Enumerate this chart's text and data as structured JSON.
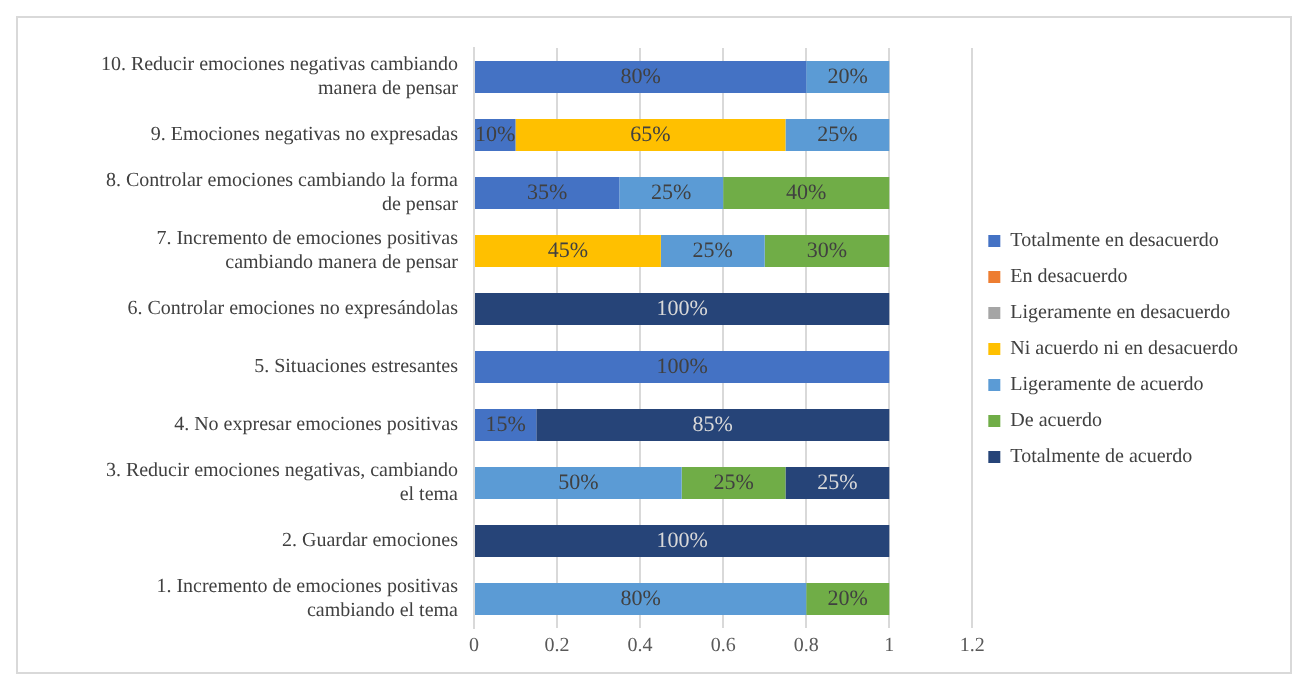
{
  "chart_data": {
    "type": "bar",
    "orientation": "horizontal",
    "stacked": true,
    "categories": [
      "10. Reducir emociones negativas cambiando manera de pensar",
      "9. Emociones negativas no expresadas",
      "8. Controlar emociones cambiando la forma de pensar",
      "7. Incremento de emociones positivas cambiando manera de pensar",
      "6. Controlar emociones no expresándolas",
      "5. Situaciones estresantes",
      "4. No expresar emociones positivas",
      "3. Reducir emociones negativas, cambiando el tema",
      "2. Guardar emociones",
      "1. Incremento de emociones positivas cambiando el tema"
    ],
    "series": [
      {
        "name": "Totalmente en desacuerdo",
        "color": "#4472c4",
        "values": [
          0.8,
          0.1,
          0.35,
          null,
          null,
          1,
          0.15,
          null,
          null,
          null
        ],
        "value_labels": [
          "80%",
          "10%",
          "35%",
          null,
          null,
          "100%",
          "15%",
          null,
          null,
          null
        ]
      },
      {
        "name": "En desacuerdo",
        "color": "#ed7d31",
        "values": [
          null,
          null,
          null,
          null,
          null,
          null,
          null,
          null,
          null,
          null
        ]
      },
      {
        "name": "Ligeramente en desacuerdo",
        "color": "#a5a5a5",
        "values": [
          null,
          null,
          null,
          null,
          null,
          null,
          null,
          null,
          null,
          null
        ]
      },
      {
        "name": "Ni acuerdo ni en desacuerdo",
        "color": "#ffc000",
        "values": [
          null,
          0.65,
          null,
          0.45,
          null,
          null,
          null,
          null,
          null,
          null
        ],
        "value_labels": [
          null,
          "65%",
          null,
          "45%",
          null,
          null,
          null,
          null,
          null,
          null
        ]
      },
      {
        "name": "Ligeramente de acuerdo",
        "color": "#5b9bd5",
        "values": [
          0.2,
          0.25,
          0.25,
          0.25,
          null,
          null,
          null,
          0.5,
          null,
          0.8
        ],
        "value_labels": [
          "20%",
          "25%",
          "25%",
          "25%",
          null,
          null,
          null,
          "50%",
          null,
          "80%"
        ]
      },
      {
        "name": "De acuerdo",
        "color": "#70ad47",
        "values": [
          null,
          null,
          0.4,
          0.3,
          null,
          null,
          null,
          0.25,
          null,
          0.2
        ],
        "value_labels": [
          null,
          null,
          "40%",
          "30%",
          null,
          null,
          null,
          "25%",
          null,
          "20%"
        ]
      },
      {
        "name": "Totalmente de acuerdo",
        "color": "#264478",
        "values": [
          null,
          null,
          null,
          null,
          1,
          null,
          0.85,
          0.25,
          1,
          null
        ],
        "value_labels": [
          null,
          null,
          null,
          null,
          "100%",
          null,
          "85%",
          "25%",
          "100%",
          null
        ]
      }
    ],
    "xlim": [
      0,
      1.2
    ],
    "xticks": [
      0,
      0.2,
      0.4,
      0.6,
      0.8,
      1,
      1.2
    ],
    "grid": "x",
    "legend": "right"
  }
}
